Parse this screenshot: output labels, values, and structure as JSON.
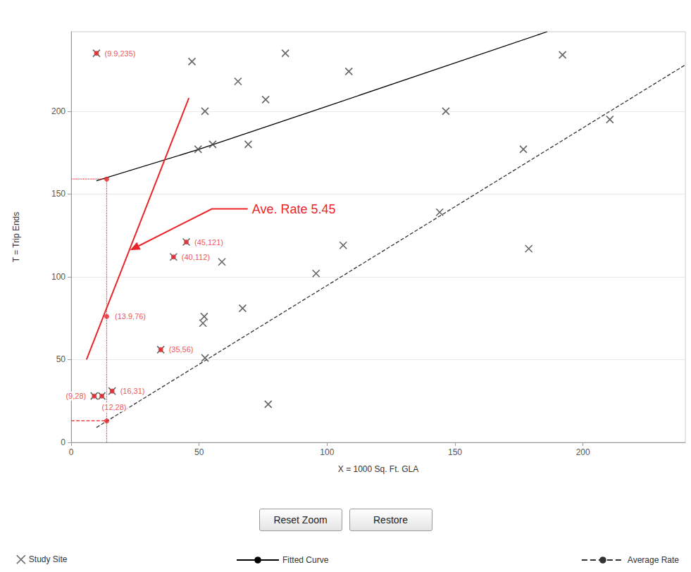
{
  "chart_data": {
    "type": "scatter",
    "x_label": "X = 1000 Sq. Ft. GLA",
    "y_label": "T = Trip Ends",
    "xlim": [
      0,
      240
    ],
    "ylim": [
      0,
      248
    ],
    "xticks": [
      0,
      50,
      100,
      150,
      200
    ],
    "yticks": [
      0,
      50,
      100,
      150,
      200
    ],
    "grid": true,
    "legend": "bottom",
    "series": [
      {
        "name": "Study Site",
        "type": "scatter",
        "marker": "x",
        "color": "#404040",
        "values": [
          [
            9.9,
            235
          ],
          [
            47.2,
            230
          ],
          [
            83.7,
            235
          ],
          [
            65.2,
            218
          ],
          [
            108.5,
            224
          ],
          [
            76,
            207
          ],
          [
            52.3,
            200
          ],
          [
            49.6,
            177
          ],
          [
            55.3,
            180
          ],
          [
            69.2,
            180
          ],
          [
            192,
            234
          ],
          [
            210.5,
            195
          ],
          [
            146.4,
            200
          ],
          [
            176.7,
            177
          ],
          [
            178.8,
            117
          ],
          [
            144,
            139
          ],
          [
            106.3,
            119
          ],
          [
            95.7,
            102
          ],
          [
            58.9,
            109
          ],
          [
            45,
            121
          ],
          [
            40,
            112
          ],
          [
            67,
            81
          ],
          [
            52,
            76
          ],
          [
            51.5,
            72
          ],
          [
            52.3,
            51
          ],
          [
            35,
            56
          ],
          [
            77,
            23
          ],
          [
            16,
            31
          ],
          [
            12,
            28
          ],
          [
            9,
            28
          ]
        ]
      },
      {
        "name": "Fitted Curve",
        "type": "line",
        "line_style": "solid",
        "color": "#000000",
        "values": [
          [
            9.9,
            158
          ],
          [
            50,
            177
          ],
          [
            100,
            203
          ],
          [
            186,
            248
          ]
        ]
      },
      {
        "name": "Average Rate",
        "type": "line",
        "line_style": "dashed",
        "color": "#333333",
        "values": [
          [
            9.9,
            9
          ],
          [
            240,
            228
          ]
        ]
      }
    ],
    "annotations": {
      "color": "#e8262a",
      "points": [
        {
          "x": 9.9,
          "y": 235,
          "label": "(9.9,235)"
        },
        {
          "x": 45,
          "y": 121,
          "label": "(45,121)"
        },
        {
          "x": 40,
          "y": 112,
          "label": "(40,112)"
        },
        {
          "x": 13.9,
          "y": 76,
          "label": "(13.9,76)"
        },
        {
          "x": 35,
          "y": 56,
          "label": "(35,56)"
        },
        {
          "x": 16,
          "y": 31,
          "label": "(16,31)"
        },
        {
          "x": 9,
          "y": 28,
          "label": "(9,28)"
        },
        {
          "x": 12,
          "y": 28,
          "label": "(12,28)"
        }
      ],
      "guide": {
        "x": 13.9,
        "fitted": 159,
        "average": 13
      },
      "note": {
        "text": "Ave. Rate 5.45",
        "line": [
          [
            6,
            50
          ],
          [
            46,
            208
          ]
        ],
        "pointer": [
          [
            69,
            141
          ],
          [
            55,
            141
          ],
          [
            23,
            116
          ]
        ]
      }
    }
  },
  "buttons": [
    "Reset Zoom",
    "Restore"
  ]
}
